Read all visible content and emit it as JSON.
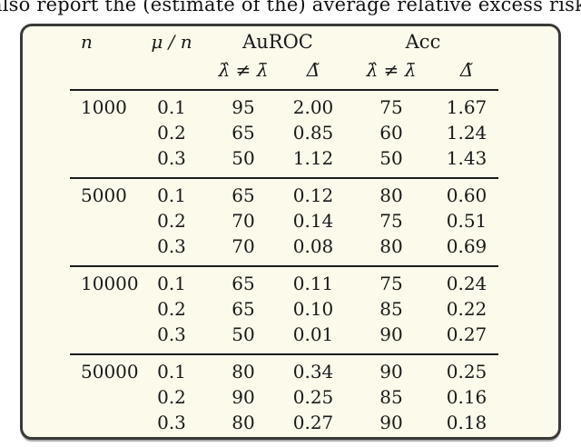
{
  "caption": "also report the (estimate of the) average relative excess risk Δ̄ in",
  "table": {
    "header": {
      "col_n": "n",
      "col_mu": "μ / n",
      "group_auroc": "AuROC",
      "group_acc": "Acc",
      "sub_neq": "λ̂ ≠ λ̄",
      "sub_delta": "Δ̃"
    },
    "groups": [
      {
        "n": "1000",
        "rows": [
          [
            "0.1",
            "95",
            "2.00",
            "75",
            "1.67"
          ],
          [
            "0.2",
            "65",
            "0.85",
            "60",
            "1.24"
          ],
          [
            "0.3",
            "50",
            "1.12",
            "50",
            "1.43"
          ]
        ]
      },
      {
        "n": "5000",
        "rows": [
          [
            "0.1",
            "65",
            "0.12",
            "80",
            "0.60"
          ],
          [
            "0.2",
            "70",
            "0.14",
            "75",
            "0.51"
          ],
          [
            "0.3",
            "70",
            "0.08",
            "80",
            "0.69"
          ]
        ]
      },
      {
        "n": "10000",
        "rows": [
          [
            "0.1",
            "65",
            "0.11",
            "75",
            "0.24"
          ],
          [
            "0.2",
            "65",
            "0.10",
            "85",
            "0.22"
          ],
          [
            "0.3",
            "50",
            "0.01",
            "90",
            "0.27"
          ]
        ]
      },
      {
        "n": "50000",
        "rows": [
          [
            "0.1",
            "80",
            "0.34",
            "90",
            "0.25"
          ],
          [
            "0.2",
            "90",
            "0.25",
            "85",
            "0.16"
          ],
          [
            "0.3",
            "80",
            "0.27",
            "90",
            "0.18"
          ]
        ]
      }
    ]
  },
  "colors": {
    "table_background": "#fcfbeb",
    "frame_border": "#3a3a38",
    "text": "#191919",
    "rule": "#1b1b1b"
  }
}
